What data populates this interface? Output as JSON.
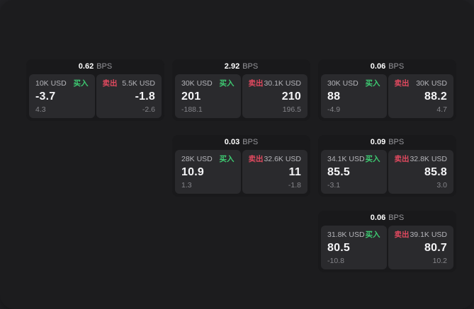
{
  "colors": {
    "outer_bg": "#232326",
    "panel_bg": "#1c1c1e",
    "card_bg": "#19191b",
    "tile_bg": "#2a2a2d",
    "buy_green": "#3ecb72",
    "sell_red": "#e0495f",
    "value_white": "#f4f4f6",
    "label_gray": "#b5b5ba",
    "muted_gray": "#85858a",
    "unit_gray": "#96969b"
  },
  "labels": {
    "bps": "BPS",
    "buy": "买入",
    "sell": "卖出"
  },
  "cards": [
    {
      "bps": "0.62",
      "buy": {
        "amount": "10K USD",
        "value": "-3.7",
        "sub": "4.3"
      },
      "sell": {
        "amount": "5.5K USD",
        "value": "-1.8",
        "sub": "-2.6"
      }
    },
    {
      "bps": "2.92",
      "buy": {
        "amount": "30K USD",
        "value": "201",
        "sub": "-188.1"
      },
      "sell": {
        "amount": "30.1K USD",
        "value": "210",
        "sub": "196.5"
      }
    },
    {
      "bps": "0.06",
      "buy": {
        "amount": "30K USD",
        "value": "88",
        "sub": "-4.9"
      },
      "sell": {
        "amount": "30K USD",
        "value": "88.2",
        "sub": "4.7"
      }
    },
    {
      "bps": "0.03",
      "buy": {
        "amount": "28K USD",
        "value": "10.9",
        "sub": "1.3"
      },
      "sell": {
        "amount": "32.6K USD",
        "value": "11",
        "sub": "-1.8"
      }
    },
    {
      "bps": "0.09",
      "buy": {
        "amount": "34.1K USD",
        "value": "85.5",
        "sub": "-3.1"
      },
      "sell": {
        "amount": "32.8K USD",
        "value": "85.8",
        "sub": "3.0"
      }
    },
    {
      "bps": "0.06",
      "buy": {
        "amount": "31.8K USD",
        "value": "80.5",
        "sub": "-10.8"
      },
      "sell": {
        "amount": "39.1K USD",
        "value": "80.7",
        "sub": "10.2"
      }
    }
  ]
}
